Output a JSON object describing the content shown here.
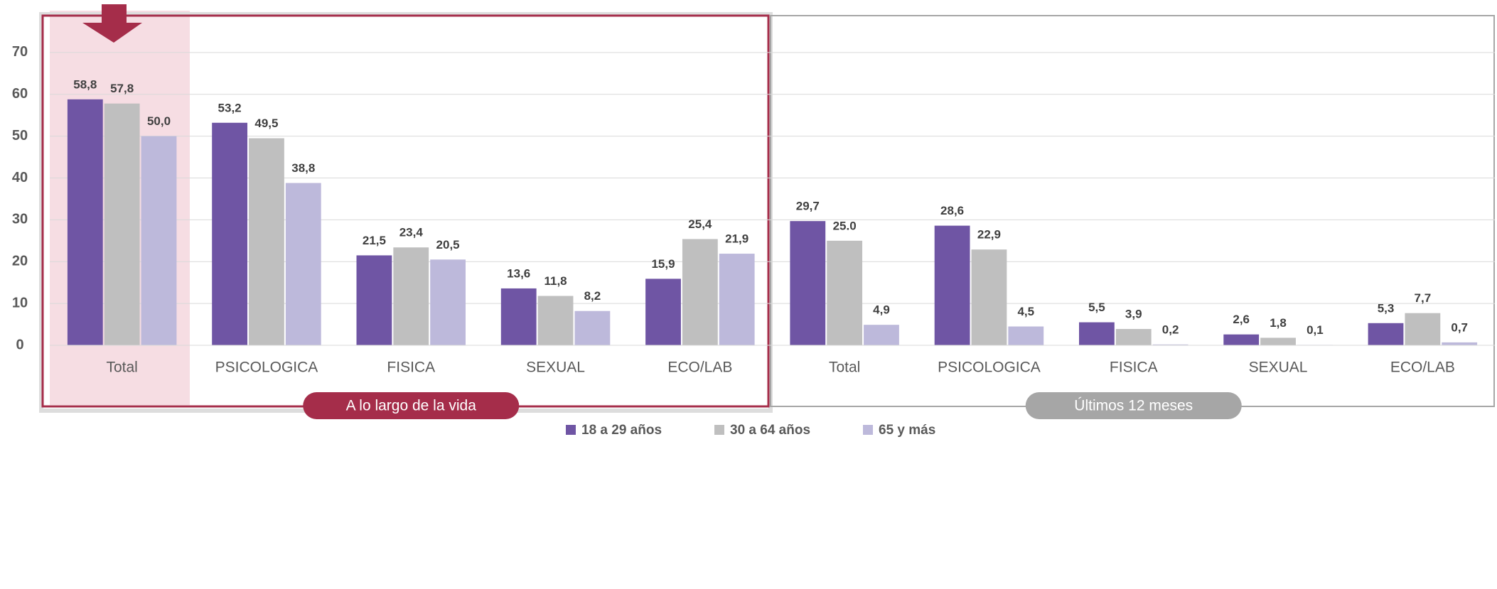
{
  "chart_data": {
    "type": "bar",
    "categories": [
      "Total",
      "PSICOLOGICA",
      "FISICA",
      "SEXUAL",
      "ECO/LAB",
      "Total",
      "PSICOLOGICA",
      "FISICA",
      "SEXUAL",
      "ECO/LAB"
    ],
    "group_labels": [
      "A lo largo de la vida",
      "Últimos 12 meses"
    ],
    "series": [
      {
        "name": "18 a 29 años",
        "color": "#6f55a4",
        "values": [
          58.8,
          53.2,
          21.5,
          13.6,
          15.9,
          29.7,
          28.6,
          5.5,
          2.6,
          5.3
        ],
        "value_labels": [
          "58,8",
          "53,2",
          "21,5",
          "13,6",
          "15,9",
          "29,7",
          "28,6",
          "5,5",
          "2,6",
          "5,3"
        ]
      },
      {
        "name": "30 a 64 años",
        "color": "#bfbfbf",
        "values": [
          57.8,
          49.5,
          23.4,
          11.8,
          25.4,
          25.0,
          22.9,
          3.9,
          1.8,
          7.7
        ],
        "value_labels": [
          "57,8",
          "49,5",
          "23,4",
          "11,8",
          "25,4",
          "25.0",
          "22,9",
          "3,9",
          "1,8",
          "7,7"
        ]
      },
      {
        "name": "65 y más",
        "color": "#bdb9db",
        "values": [
          50.0,
          38.8,
          20.5,
          8.2,
          21.9,
          4.9,
          4.5,
          0.2,
          0.1,
          0.7
        ],
        "value_labels": [
          "50,0",
          "38,8",
          "20,5",
          "8,2",
          "21,9",
          "4,9",
          "4,5",
          "0,2",
          "0,1",
          "0,7"
        ]
      }
    ],
    "ylim": [
      0,
      80
    ],
    "yticks": [
      0,
      10,
      20,
      30,
      40,
      50,
      60,
      70
    ],
    "grid": true
  }
}
